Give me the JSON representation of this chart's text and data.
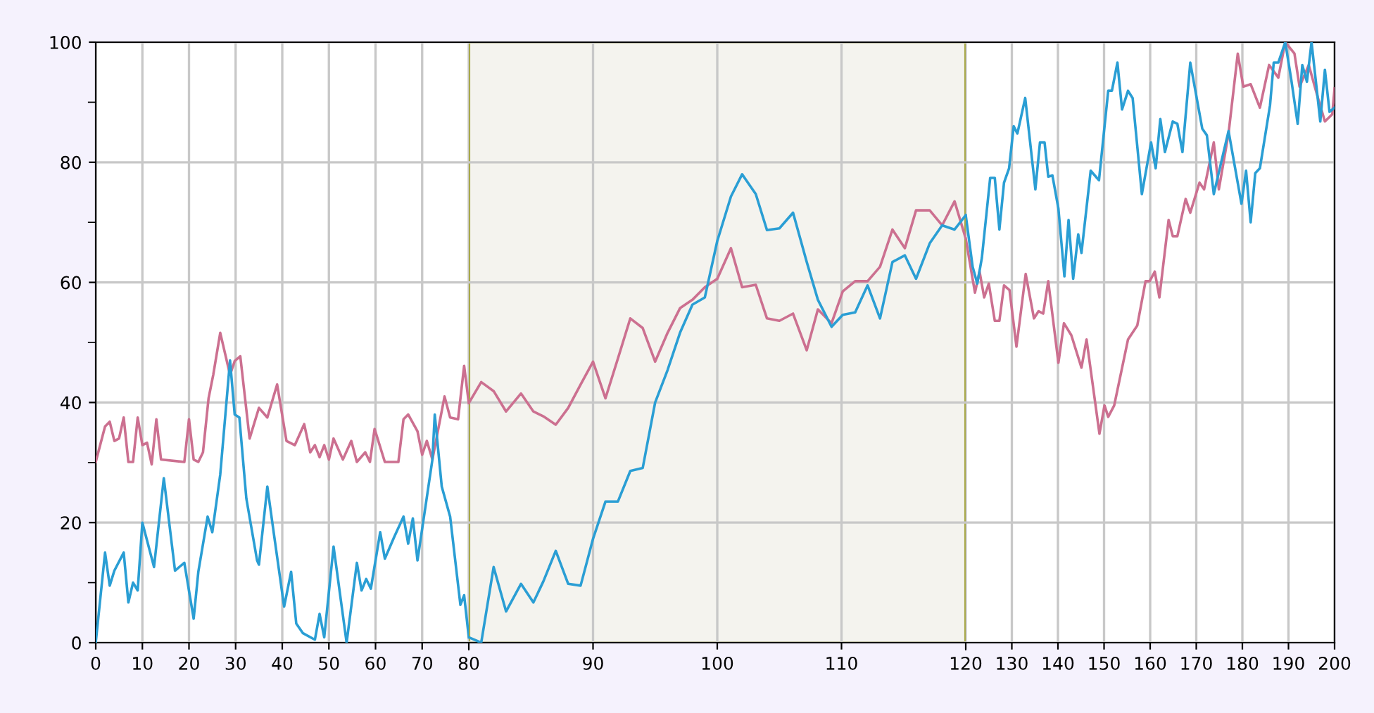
{
  "chart_data": [
    {
      "type": "line",
      "xlim": [
        0,
        80
      ],
      "xticks": [
        0,
        10,
        20,
        30,
        40,
        50,
        60,
        70,
        80
      ],
      "ylim": [
        0,
        100
      ],
      "yticks": [
        0,
        {
          "value": 10,
          "label": null
        },
        20,
        {
          "value": 30,
          "label": null
        },
        40,
        {
          "value": 50,
          "label": null
        },
        60,
        {
          "value": 70,
          "label": null
        },
        80,
        {
          "value": 90,
          "label": null
        },
        100
      ],
      "grid": true,
      "marker": "none",
      "line_style": "solid",
      "series": [
        {
          "color": "#cc7090",
          "x": [
            0,
            2,
            3,
            4,
            5,
            6,
            7,
            8,
            9,
            10,
            11,
            12,
            13,
            14,
            19,
            20,
            21,
            22,
            23,
            24.2,
            25.2,
            26.7,
            28.8,
            29.8,
            31,
            33,
            35,
            36.8,
            38.9,
            40.9,
            42.7,
            44.7,
            46,
            47,
            48,
            49,
            50,
            51,
            53,
            54.8,
            56,
            57.8,
            58.8,
            59.8,
            62,
            64.9,
            66,
            67,
            69,
            70,
            71,
            72.2,
            74.8,
            76,
            77.7,
            79,
            80
          ],
          "values": [
            30.1,
            36,
            36.8,
            33.6,
            34,
            37.5,
            30.1,
            30.1,
            37.5,
            32.9,
            33.3,
            29.7,
            37.2,
            30.5,
            30.1,
            37.2,
            30.5,
            30.1,
            31.7,
            40.7,
            44.6,
            51.6,
            44.6,
            46.9,
            47.7,
            34,
            39.1,
            37.5,
            43,
            33.6,
            32.9,
            36.4,
            31.7,
            32.9,
            30.9,
            32.9,
            30.5,
            34,
            30.5,
            33.6,
            30.1,
            31.7,
            30.1,
            35.6,
            30.1,
            30.1,
            37.2,
            38,
            35.2,
            31.3,
            33.6,
            30.5,
            41,
            37.5,
            37.2,
            46.1,
            39.9
          ]
        },
        {
          "color": "#2a9ed4",
          "x": [
            0,
            2,
            3,
            4,
            6,
            7,
            8,
            9,
            10,
            12.5,
            14.6,
            17,
            19,
            21,
            22,
            24,
            25,
            26.7,
            28.8,
            29.8,
            30.8,
            32.3,
            34.6,
            35,
            36.8,
            38.3,
            40.4,
            41.9,
            43,
            44.4,
            47,
            48,
            49,
            51,
            53.8,
            56,
            57,
            58,
            59,
            61,
            62,
            64,
            66,
            67,
            68,
            69,
            72.2,
            72.7,
            74.2,
            76,
            78.2,
            79,
            80
          ],
          "values": [
            0,
            15,
            9.5,
            12,
            15,
            6.7,
            10,
            8.7,
            20,
            12.6,
            27.4,
            12,
            13.3,
            4,
            11.8,
            21,
            18.4,
            28,
            47,
            38,
            37.5,
            24,
            13.7,
            13,
            26,
            17.6,
            6,
            11.8,
            3.2,
            1.6,
            0.5,
            4.8,
            0.9,
            16,
            0,
            13.3,
            8.7,
            10.6,
            9,
            18.4,
            14,
            17.6,
            21,
            16.5,
            20.7,
            13.7,
            30.5,
            38,
            26,
            21,
            6.3,
            7.9,
            0.9
          ]
        }
      ]
    },
    {
      "type": "line",
      "xlim": [
        80,
        120
      ],
      "xticks": [
        {
          "value": 80,
          "label": null
        },
        90,
        100,
        110,
        {
          "value": 120,
          "label": null
        }
      ],
      "ylim": [
        0,
        100
      ],
      "yticks": [
        0,
        20,
        40,
        60,
        80,
        100
      ],
      "tick_labels": "x",
      "grid": true,
      "marker": "none",
      "line_style": "solid",
      "bands": [
        {
          "axis": "x",
          "from": 80,
          "to": 120,
          "color": "#f4f3ee"
        }
      ],
      "series": [
        {
          "color": "#cc7090",
          "x": [
            80,
            81,
            82,
            83,
            84.2,
            85.2,
            86,
            87,
            88,
            89,
            90,
            91,
            92,
            93,
            94,
            95,
            96,
            97,
            98,
            99,
            100,
            101.1,
            102,
            103.1,
            104,
            105,
            106.1,
            107.2,
            108.1,
            109.2,
            110.1,
            111.1,
            112.1,
            113.1,
            114.1,
            115.1,
            116,
            117.1,
            118.1,
            119.1,
            120
          ],
          "values": [
            39.9,
            43.4,
            41.9,
            38.5,
            41.5,
            38.5,
            37.7,
            36.3,
            39.1,
            43,
            46.8,
            40.7,
            47.3,
            54,
            52.4,
            46.8,
            51.6,
            55.7,
            57.1,
            59.2,
            60.6,
            65.7,
            59.2,
            59.6,
            54,
            53.6,
            54.8,
            48.7,
            55.5,
            53.2,
            58.5,
            60.2,
            60.2,
            62.6,
            68.8,
            65.7,
            72,
            72,
            69.5,
            73.5,
            67.3
          ]
        },
        {
          "color": "#2a9ed4",
          "x": [
            80,
            81,
            82,
            83,
            84.2,
            85.2,
            86,
            87,
            88,
            89,
            90,
            91,
            92,
            93,
            94,
            95,
            96,
            97,
            98,
            99,
            100,
            101.1,
            102,
            103.1,
            104,
            105,
            106.1,
            107.2,
            108.1,
            109.2,
            110.1,
            111.1,
            112.1,
            113.1,
            114.1,
            115.1,
            116,
            117.1,
            118.1,
            119.1,
            120
          ],
          "values": [
            0.9,
            0,
            12.6,
            5.2,
            9.8,
            6.7,
            10.2,
            15.3,
            9.8,
            9.5,
            17.3,
            23.5,
            23.5,
            28.6,
            29.1,
            40,
            45.4,
            51.6,
            56.3,
            57.5,
            66.9,
            74.3,
            78,
            74.7,
            68.7,
            69,
            71.6,
            63.4,
            57.1,
            52.6,
            54.6,
            55,
            59.5,
            54,
            63.4,
            64.5,
            60.6,
            66.5,
            69.5,
            68.8,
            71.2
          ]
        }
      ]
    },
    {
      "type": "line",
      "xlim": [
        120,
        200
      ],
      "xticks": [
        120,
        130,
        140,
        150,
        160,
        170,
        180,
        190,
        200
      ],
      "ylim": [
        0,
        100
      ],
      "yticks": [
        0,
        20,
        40,
        60,
        80,
        100
      ],
      "tick_labels": "x",
      "grid": true,
      "marker": "none",
      "line_style": "solid",
      "series": [
        {
          "color": "#cc7090",
          "x": [
            120,
            122,
            123,
            124,
            125,
            126.3,
            127.3,
            128.3,
            129.5,
            131,
            133,
            134.8,
            135.8,
            136.8,
            137.9,
            140.1,
            141.3,
            142.9,
            145.1,
            146.2,
            149,
            150.1,
            150.9,
            152.2,
            155.2,
            157.2,
            159,
            159.9,
            161,
            162,
            164,
            164.9,
            165.9,
            167.7,
            168.7,
            170.7,
            171.7,
            173.8,
            174.9,
            177,
            179,
            180.2,
            181.8,
            183.8,
            185.8,
            187.8,
            189.3,
            191.3,
            192.4,
            194.4,
            196.4,
            197.9,
            199.5,
            200
          ],
          "values": [
            67.3,
            58.3,
            61.8,
            57.5,
            59.8,
            53.6,
            53.6,
            59.5,
            58.7,
            49.3,
            61.4,
            54,
            55.2,
            54.8,
            60.2,
            46.6,
            53.2,
            51.2,
            45.8,
            50.5,
            34.8,
            39.5,
            37.6,
            39.5,
            50.5,
            52.8,
            60.2,
            60.2,
            61.8,
            57.5,
            70.4,
            67.7,
            67.7,
            73.9,
            71.6,
            76.6,
            75.5,
            83.3,
            75.5,
            84.8,
            98.1,
            92.6,
            93,
            89.1,
            96.2,
            94.1,
            100,
            98.1,
            92.6,
            96.2,
            90.7,
            86.8,
            88,
            92.3
          ]
        },
        {
          "color": "#2a9ed4",
          "x": [
            120,
            121.5,
            122.5,
            123.5,
            125.3,
            126.3,
            127.3,
            128.3,
            129.4,
            130.4,
            131.2,
            132.9,
            135.1,
            136.1,
            137.1,
            137.9,
            138.8,
            140.1,
            141.4,
            142.3,
            143.3,
            144.4,
            145.1,
            147.1,
            148.9,
            150.9,
            151.7,
            152.9,
            153.9,
            155.2,
            156.2,
            158.2,
            160.2,
            161.2,
            162.2,
            163.2,
            164.9,
            165.9,
            167,
            168.7,
            171.3,
            172.3,
            173.8,
            175.1,
            177,
            179.8,
            180.8,
            181.8,
            182.8,
            183.8,
            186,
            186.8,
            187.8,
            189.3,
            190.6,
            192,
            193,
            194,
            195,
            196.9,
            197.9,
            198.9,
            200
          ],
          "values": [
            71.2,
            62.6,
            59.8,
            64.1,
            77.4,
            77.4,
            68.8,
            76.6,
            79,
            86,
            84.8,
            90.7,
            75.5,
            83.3,
            83.3,
            77.6,
            77.8,
            72.3,
            61,
            70.4,
            60.6,
            68,
            64.9,
            78.6,
            77,
            91.9,
            91.9,
            96.6,
            88.8,
            91.9,
            90.7,
            74.7,
            83.3,
            79,
            87.2,
            81.7,
            86.8,
            86.4,
            81.7,
            96.6,
            85.6,
            84.5,
            74.7,
            79,
            85.2,
            73.1,
            78.6,
            70,
            78.2,
            79,
            89.5,
            96.6,
            96.6,
            100,
            93.8,
            86.4,
            96.2,
            93.4,
            100,
            86.8,
            95.4,
            88.4,
            89.1
          ]
        }
      ]
    }
  ]
}
